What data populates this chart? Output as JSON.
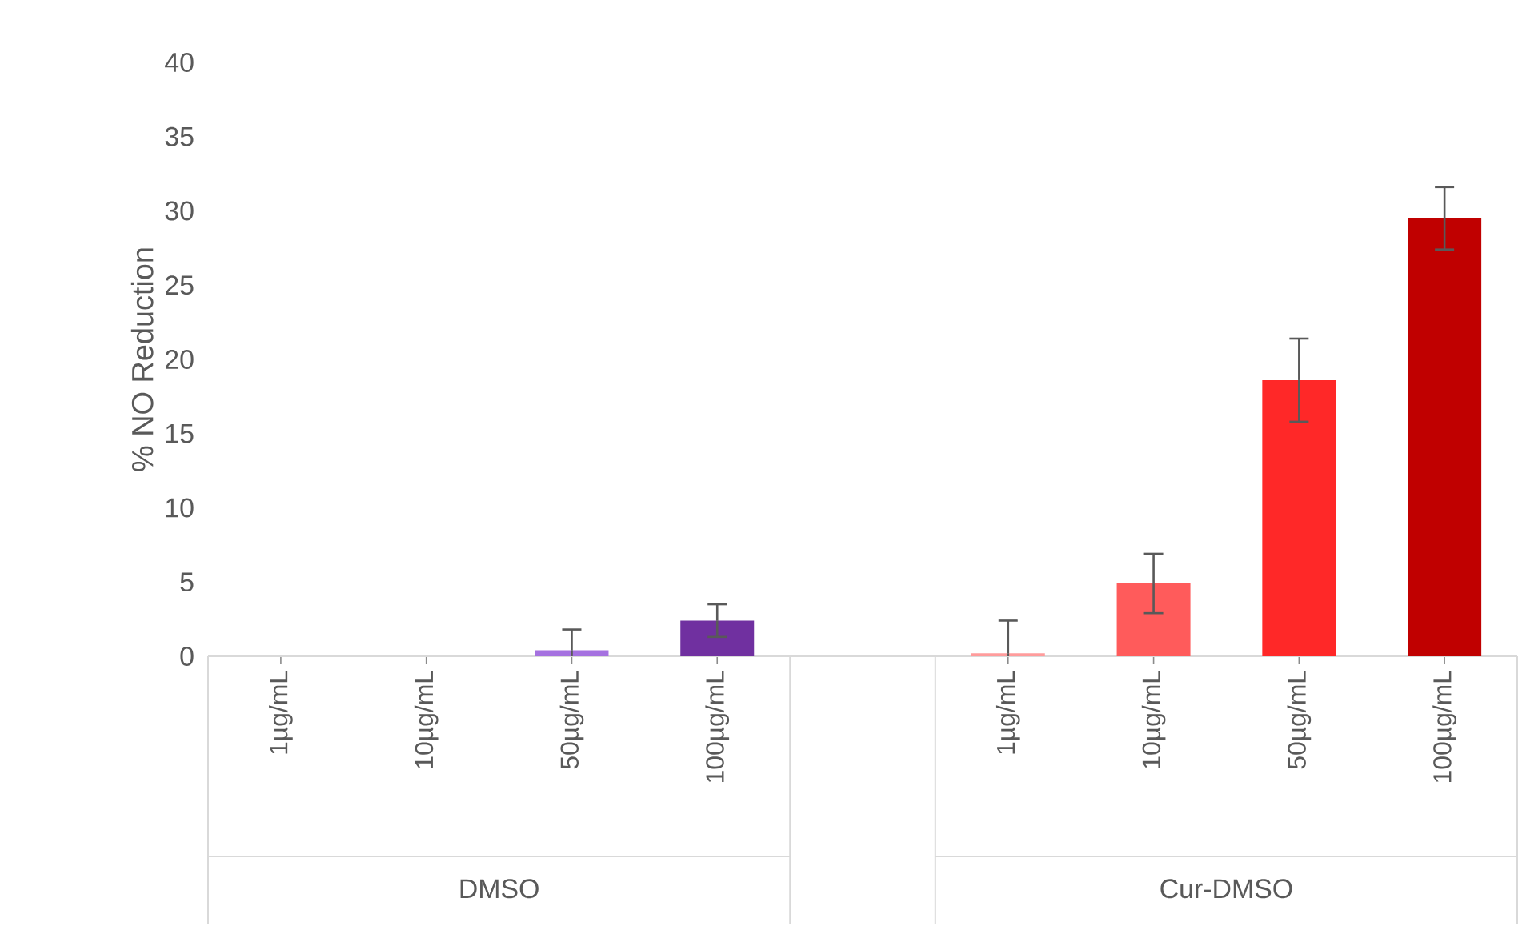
{
  "chart_data": {
    "type": "bar",
    "ylabel": "% NO Reduction",
    "categories": [
      "1µg/mL",
      "10µg/mL",
      "50µg/mL",
      "100µg/mL",
      null,
      "1µg/mL",
      "10µg/mL",
      "50µg/mL",
      "100µg/mL"
    ],
    "values": [
      null,
      null,
      0.4,
      2.4,
      null,
      0.2,
      4.9,
      18.6,
      29.5
    ],
    "errors": [
      null,
      null,
      1.4,
      1.1,
      null,
      2.2,
      2.0,
      2.8,
      2.1
    ],
    "colors": [
      null,
      null,
      "#a571e0",
      "#7030a0",
      null,
      "#ff9c9c",
      "#ff5b5b",
      "#ff2828",
      "#c00000"
    ],
    "ylim": [
      0,
      40
    ],
    "yticks": [
      0,
      5,
      10,
      15,
      20,
      25,
      30,
      35,
      40
    ],
    "annotations": [
      "DMSO",
      "Cur-DMSO"
    ]
  }
}
